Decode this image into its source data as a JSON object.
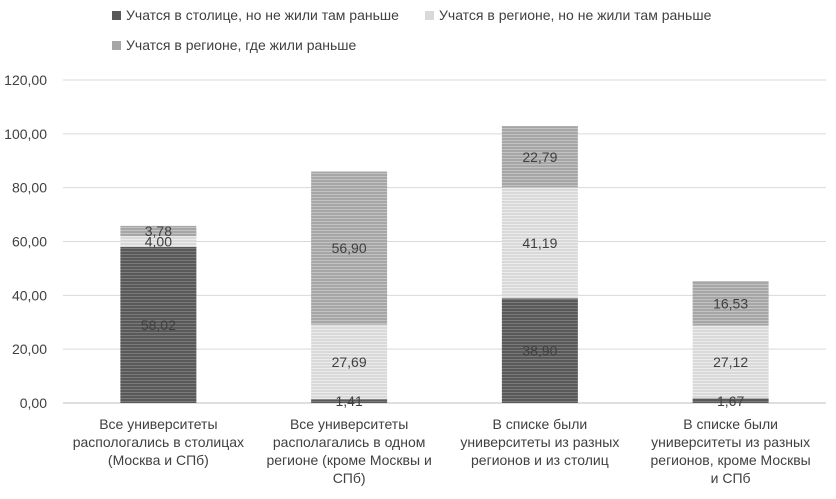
{
  "colors": {
    "series": [
      "#595959",
      "#d9d9d9",
      "#a6a6a6"
    ],
    "grid": "#d9d9d9",
    "text": "#404040"
  },
  "chart_data": {
    "type": "bar",
    "stacked": true,
    "title": "",
    "xlabel": "",
    "ylabel": "",
    "ylim": [
      0,
      120
    ],
    "yticks": [
      "0,00",
      "20,00",
      "40,00",
      "60,00",
      "80,00",
      "100,00",
      "120,00"
    ],
    "grid": true,
    "legend_position": "top",
    "categories": [
      [
        "Все университеты",
        "распологались в столицах",
        "(Москва и СПб)"
      ],
      [
        "Все университеты",
        "располагались в одном",
        "регионе (кроме Москвы и",
        "СПб)"
      ],
      [
        "В списке были",
        "университеты из разных",
        "регионов и из столиц"
      ],
      [
        "В списке были",
        "университеты из разных",
        "регионов, кроме Москвы",
        "и СПб"
      ]
    ],
    "series": [
      {
        "name": "Учатся в столице, но не жили там раньше",
        "values": [
          58.02,
          1.41,
          38.9,
          1.67
        ],
        "labels": [
          "58,02",
          "1,41",
          "38,90",
          "1,67"
        ]
      },
      {
        "name": "Учатся в регионе, но не жили там раньше",
        "values": [
          4.0,
          27.69,
          41.19,
          27.12
        ],
        "labels": [
          "4,00",
          "27,69",
          "41,19",
          "27,12"
        ]
      },
      {
        "name": "Учатся в регионе, где жили раньше",
        "values": [
          3.78,
          56.9,
          22.79,
          16.53
        ],
        "labels": [
          "3,78",
          "56,90",
          "22,79",
          "16,53"
        ]
      }
    ]
  }
}
